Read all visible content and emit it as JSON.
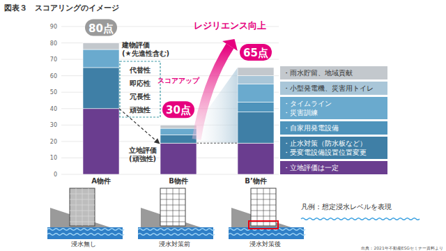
{
  "chart_data": {
    "type": "bar",
    "stacked": true,
    "grid": true,
    "title": "図表３　スコアリングのイメージ",
    "categories": [
      "A物件",
      "B物件",
      "B’物件"
    ],
    "series": [
      {
        "name": "・立地評価は一定",
        "color": "#6a3d8f",
        "values": [
          40,
          19,
          19
        ]
      },
      {
        "name": "・止水対策（防水板など）\n・受変電設備設置位置変更",
        "color": "#3f7fa6",
        "values": [
          25,
          5,
          19
        ]
      },
      {
        "name": "・自家用発電設備",
        "color": "#4e93bb",
        "values": [
          0,
          0,
          6
        ]
      },
      {
        "name": "・タイムライン\n・災害訓練",
        "color": "#6aaace",
        "values": [
          11,
          4,
          11
        ]
      },
      {
        "name": "・小型発電機、災害用トイレ",
        "color": "#a9c6d8",
        "values": [
          0,
          0,
          5
        ]
      },
      {
        "name": "・雨水貯留、地域貢献",
        "color": "#c3c8cd",
        "values": [
          4,
          2,
          5
        ]
      }
    ],
    "totals": [
      80,
      30,
      65
    ],
    "total_labels": [
      "80点",
      "30点",
      "65点"
    ],
    "ylim": [
      0,
      90
    ],
    "yticks": [
      0,
      10,
      20,
      30,
      40,
      50,
      60,
      70,
      80,
      90
    ],
    "annotations": {
      "building_eval": [
        "建物評価",
        "(★先進性含む)"
      ],
      "building_items": [
        "代替性",
        "即応性",
        "冗長性",
        "頑強性"
      ],
      "location_eval": [
        "立地評価",
        "(頑強性)"
      ],
      "score_up": "スコアアップ",
      "resilience": "レジリエンス向上"
    },
    "illustration_captions": [
      "浸水無し",
      "浸水対策前",
      "浸水対策後"
    ],
    "illustration_legend": "凡例：想定浸水レベルを表現",
    "source": "出典：2021年不動産ESGセミナー資料より"
  }
}
